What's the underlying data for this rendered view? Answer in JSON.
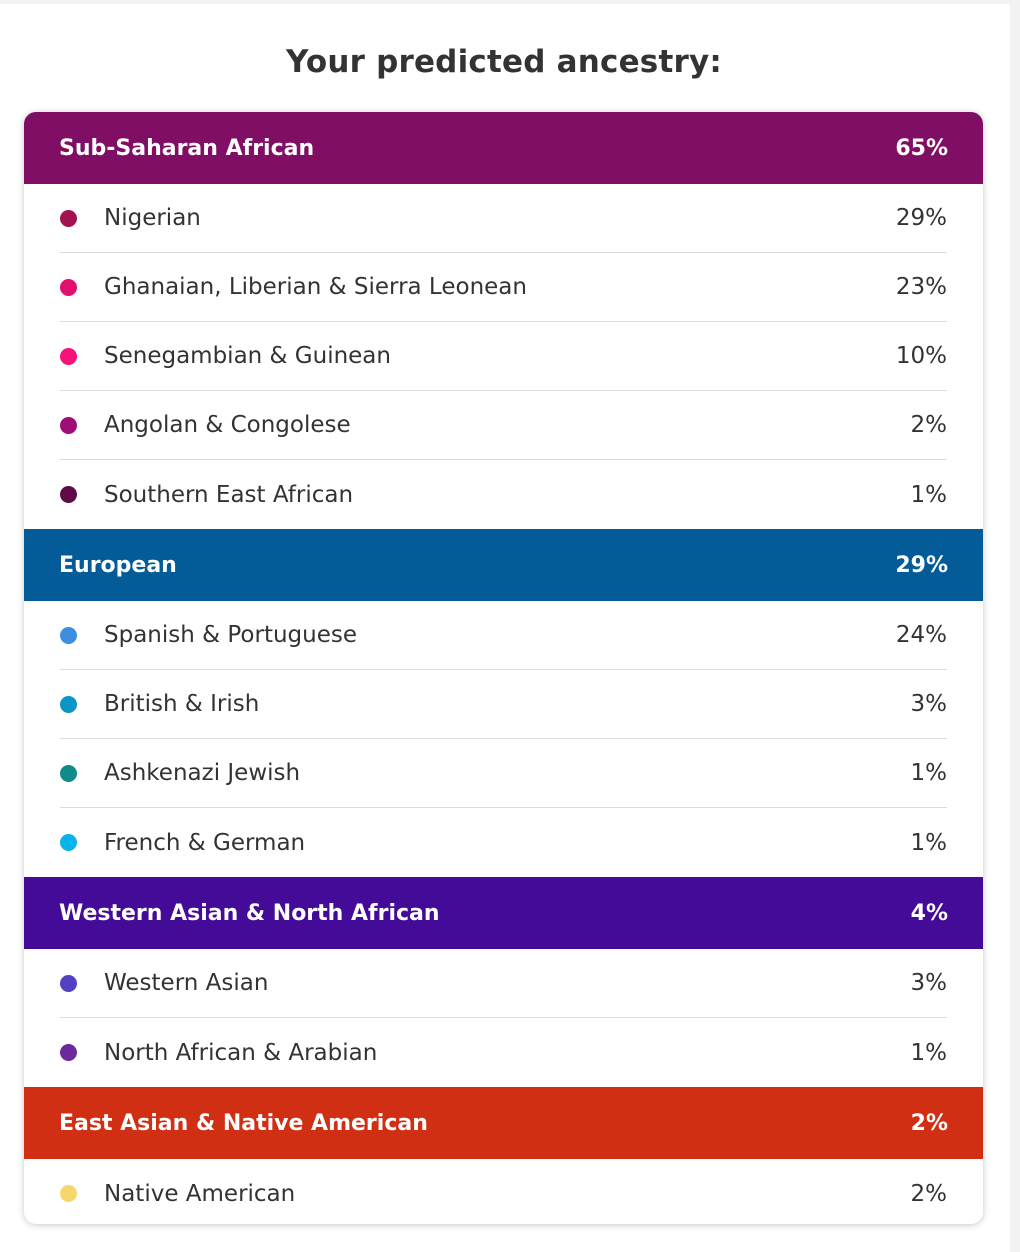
{
  "title": "Your predicted ancestry:",
  "groups": [
    {
      "name": "Sub-Saharan African",
      "percent": "65%",
      "color": "#7f0e64",
      "items": [
        {
          "label": "Nigerian",
          "percent": "29%",
          "color": "#a4124f"
        },
        {
          "label": "Ghanaian, Liberian & Sierra Leonean",
          "percent": "23%",
          "color": "#e0106c"
        },
        {
          "label": "Senegambian & Guinean",
          "percent": "10%",
          "color": "#f7117a"
        },
        {
          "label": "Angolan & Congolese",
          "percent": "2%",
          "color": "#a10d77"
        },
        {
          "label": "Southern East African",
          "percent": "1%",
          "color": "#5d0a45"
        }
      ]
    },
    {
      "name": "European",
      "percent": "29%",
      "color": "#035b98",
      "items": [
        {
          "label": "Spanish & Portuguese",
          "percent": "24%",
          "color": "#3c8fe0"
        },
        {
          "label": "British & Irish",
          "percent": "3%",
          "color": "#0996c6"
        },
        {
          "label": "Ashkenazi Jewish",
          "percent": "1%",
          "color": "#128a8a"
        },
        {
          "label": "French & German",
          "percent": "1%",
          "color": "#08b3ec"
        }
      ]
    },
    {
      "name": "Western Asian & North African",
      "percent": "4%",
      "color": "#440b98",
      "items": [
        {
          "label": "Western Asian",
          "percent": "3%",
          "color": "#5340c2"
        },
        {
          "label": "North African & Arabian",
          "percent": "1%",
          "color": "#6b2a9e"
        }
      ]
    },
    {
      "name": "East Asian & Native American",
      "percent": "2%",
      "color": "#d12f14",
      "items": [
        {
          "label": "Native American",
          "percent": "2%",
          "color": "#f8d66e"
        }
      ]
    }
  ]
}
